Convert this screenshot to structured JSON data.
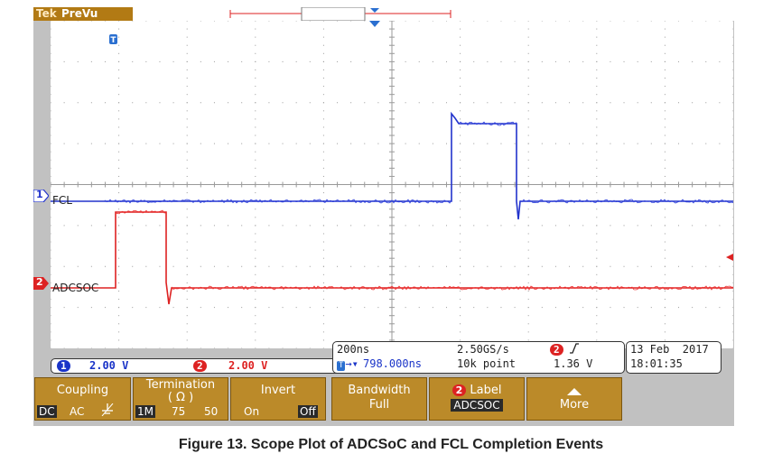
{
  "brand": {
    "tek": "Tek",
    "mode": "PreVu"
  },
  "channels": {
    "ch1": {
      "number": "1",
      "name": "FCL",
      "scale": "2.00 V",
      "color": "#2222cc"
    },
    "ch2": {
      "number": "2",
      "name": "ADCSOC",
      "scale": "2.00 V",
      "color": "#dd2222"
    }
  },
  "trigger_marker": "T",
  "timebase": {
    "scale": "200ns",
    "sample_rate": "2.50GS/s",
    "trigger_channel": "2",
    "trigger_edge": "rising-edge-icon",
    "position": "798.000ns",
    "position_prefix": "T",
    "record_length": "10k point",
    "trigger_level": "1.36 V"
  },
  "datetime": {
    "date": "13 Feb  2017",
    "time": "18:01:35"
  },
  "softkeys": {
    "coupling": {
      "label": "Coupling",
      "options": [
        "DC",
        "AC"
      ],
      "selected": "DC",
      "gnd_icon": "ground-icon"
    },
    "termination": {
      "label": "Termination",
      "unit": "( Ω )",
      "options": [
        "1M",
        "75",
        "50"
      ],
      "selected": "1M"
    },
    "invert": {
      "label": "Invert",
      "options": [
        "On",
        "Off"
      ],
      "selected": "Off"
    },
    "bandwidth": {
      "label": "Bandwidth",
      "value": "Full"
    },
    "label": {
      "channel": "2",
      "label": "Label",
      "value": "ADCSOC"
    },
    "more": {
      "label": "More",
      "icon": "up-arrow-icon"
    }
  },
  "caption": "Figure 13. Scope Plot of ADCSoC and FCL Completion Events",
  "colors": {
    "bezel": "#c1c1c1",
    "softkey": "#bb8a29",
    "brand": "#b27a14"
  }
}
